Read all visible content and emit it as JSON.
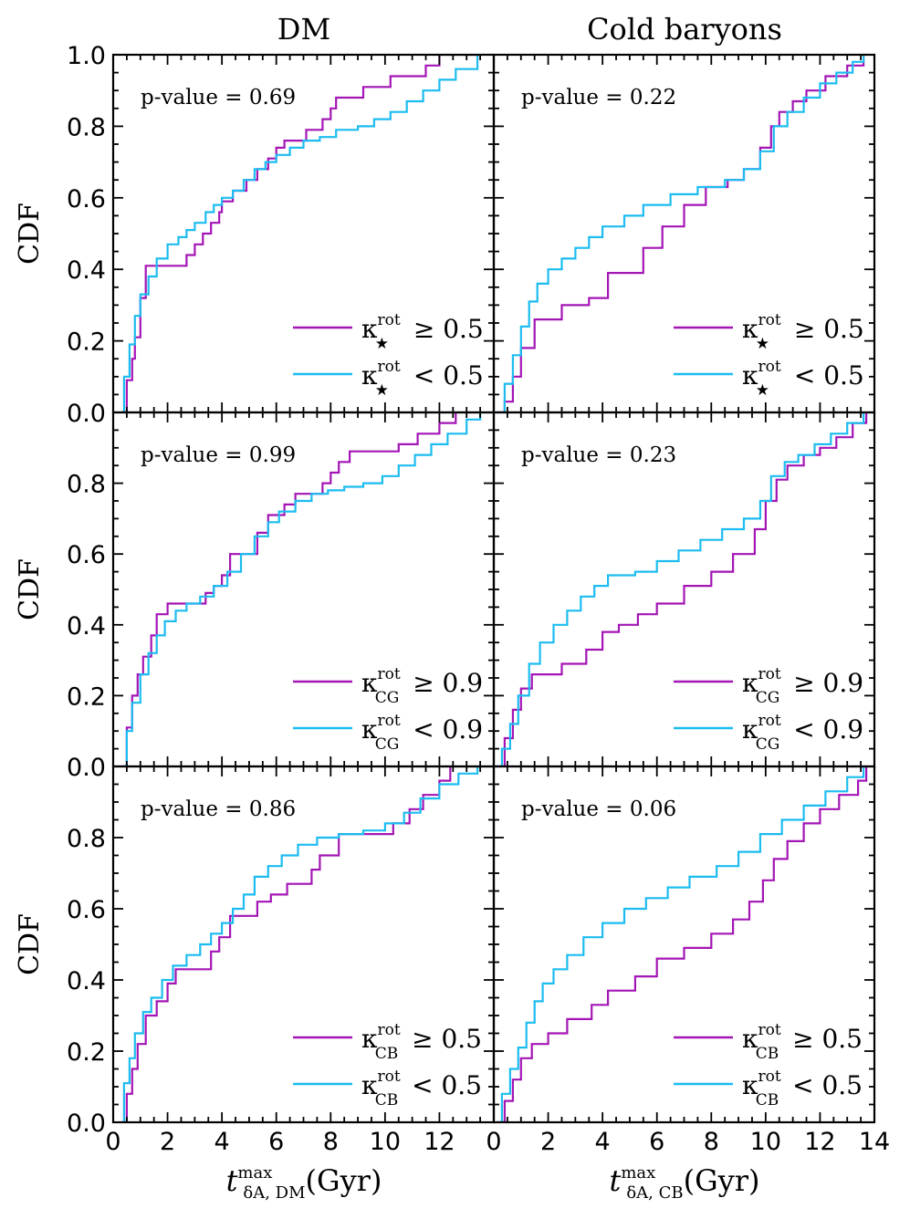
{
  "colors": {
    "magenta": "#a315b5",
    "cyan": "#1cbcf0"
  },
  "column_titles": [
    "DM",
    "Cold baryons"
  ],
  "axis": {
    "ylabel": "CDF",
    "xlabel_left": {
      "main": "t",
      "sup": "max",
      "sub": "δA, DM",
      "units": "(Gyr)"
    },
    "xlabel_right": {
      "main": "t",
      "sup": "max",
      "sub": "δA, CB",
      "units": "(Gyr)"
    },
    "xticks_left": [
      "0",
      "2",
      "4",
      "6",
      "8",
      "10",
      "12"
    ],
    "xticks_right": [
      "0",
      "2",
      "4",
      "6",
      "8",
      "10",
      "12",
      "14"
    ],
    "yticks_top": [
      "0.0",
      "0.2",
      "0.4",
      "0.6",
      "0.8",
      "1.0"
    ],
    "yticks_rest": [
      "0.0",
      "0.2",
      "0.4",
      "0.6",
      "0.8"
    ]
  },
  "panels_text": [
    {
      "pvalue": "p-value = 0.69",
      "leg_main": "κ",
      "leg_sup": "rot",
      "leg_sub": "★",
      "leg_hi": "≥ 0.5",
      "leg_lo": "< 0.5"
    },
    {
      "pvalue": "p-value = 0.22",
      "leg_main": "κ",
      "leg_sup": "rot",
      "leg_sub": "★",
      "leg_hi": "≥ 0.5",
      "leg_lo": "< 0.5"
    },
    {
      "pvalue": "p-value = 0.99",
      "leg_main": "κ",
      "leg_sup": "rot",
      "leg_sub": "CG",
      "leg_hi": "≥ 0.9",
      "leg_lo": "< 0.9"
    },
    {
      "pvalue": "p-value = 0.23",
      "leg_main": "κ",
      "leg_sup": "rot",
      "leg_sub": "CG",
      "leg_hi": "≥ 0.9",
      "leg_lo": "< 0.9"
    },
    {
      "pvalue": "p-value = 0.86",
      "leg_main": "κ",
      "leg_sup": "rot",
      "leg_sub": "CB",
      "leg_hi": "≥ 0.5",
      "leg_lo": "< 0.5"
    },
    {
      "pvalue": "p-value = 0.06",
      "leg_main": "κ",
      "leg_sup": "rot",
      "leg_sub": "CB",
      "leg_hi": "≥ 0.5",
      "leg_lo": "< 0.5"
    }
  ],
  "chart_data": {
    "type": "line",
    "subtype": "step-CDF",
    "xlim": [
      0,
      14
    ],
    "ylim": [
      0,
      1
    ],
    "panels": [
      {
        "column": "DM",
        "row": 1,
        "series": [
          {
            "name": "κ★rot ≥ 0.5",
            "color": "magenta",
            "x": [
              0.3,
              0.5,
              0.7,
              0.8,
              1.0,
              1.2,
              2.4,
              2.7,
              3.0,
              3.3,
              3.6,
              3.9,
              4.0,
              4.4,
              4.9,
              5.3,
              5.7,
              6.0,
              6.3,
              6.9,
              7.1,
              7.7,
              8.0,
              8.2,
              8.6,
              9.2,
              10.2,
              11.5,
              12.0,
              13.5
            ],
            "y": [
              0.0,
              0.09,
              0.15,
              0.21,
              0.32,
              0.41,
              0.41,
              0.44,
              0.47,
              0.5,
              0.53,
              0.56,
              0.59,
              0.62,
              0.65,
              0.68,
              0.71,
              0.74,
              0.76,
              0.76,
              0.79,
              0.82,
              0.85,
              0.88,
              0.88,
              0.91,
              0.94,
              0.97,
              1.0,
              1.0
            ]
          },
          {
            "name": "κ★rot < 0.5",
            "color": "cyan",
            "x": [
              0.3,
              0.4,
              0.6,
              0.8,
              1.0,
              1.3,
              1.6,
              2.0,
              2.4,
              2.7,
              3.0,
              3.4,
              3.7,
              4.0,
              4.4,
              4.8,
              5.2,
              5.6,
              6.0,
              6.5,
              7.0,
              7.6,
              8.2,
              9.0,
              9.6,
              10.2,
              10.8,
              11.4,
              12.0,
              12.6,
              13.4
            ],
            "y": [
              0.0,
              0.1,
              0.19,
              0.27,
              0.33,
              0.38,
              0.43,
              0.47,
              0.49,
              0.51,
              0.53,
              0.56,
              0.58,
              0.6,
              0.62,
              0.65,
              0.68,
              0.7,
              0.72,
              0.74,
              0.76,
              0.77,
              0.79,
              0.8,
              0.82,
              0.84,
              0.87,
              0.9,
              0.93,
              0.96,
              1.0
            ]
          }
        ]
      },
      {
        "column": "Cold baryons",
        "row": 1,
        "series": [
          {
            "name": "κ★rot ≥ 0.5",
            "color": "magenta",
            "x": [
              0.1,
              0.4,
              0.7,
              1.0,
              1.5,
              2.5,
              3.5,
              4.2,
              5.5,
              6.2,
              7.0,
              7.8,
              8.6,
              9.2,
              9.8,
              10.2,
              10.5,
              11.0,
              11.5,
              12.2,
              13.0,
              13.6
            ],
            "y": [
              0.0,
              0.03,
              0.1,
              0.18,
              0.26,
              0.3,
              0.32,
              0.39,
              0.46,
              0.52,
              0.58,
              0.63,
              0.65,
              0.68,
              0.74,
              0.8,
              0.84,
              0.87,
              0.9,
              0.94,
              0.97,
              1.0
            ]
          },
          {
            "name": "κ★rot < 0.5",
            "color": "cyan",
            "x": [
              0.1,
              0.4,
              0.7,
              1.0,
              1.3,
              1.6,
              2.0,
              2.5,
              3.0,
              3.5,
              4.0,
              4.8,
              5.5,
              6.5,
              7.5,
              8.5,
              9.2,
              9.8,
              10.3,
              10.8,
              11.4,
              12.0,
              12.6,
              13.2,
              13.6
            ],
            "y": [
              0.0,
              0.08,
              0.16,
              0.24,
              0.31,
              0.36,
              0.4,
              0.43,
              0.46,
              0.49,
              0.52,
              0.55,
              0.58,
              0.61,
              0.63,
              0.65,
              0.68,
              0.73,
              0.8,
              0.84,
              0.88,
              0.92,
              0.95,
              0.98,
              1.0
            ]
          }
        ]
      },
      {
        "column": "DM",
        "row": 2,
        "series": [
          {
            "name": "κCGrot ≥ 0.9",
            "color": "magenta",
            "x": [
              0.3,
              0.5,
              0.7,
              0.9,
              1.1,
              1.4,
              1.6,
              2.0,
              3.1,
              3.4,
              3.7,
              4.0,
              4.3,
              4.9,
              5.3,
              5.7,
              6.3,
              6.7,
              7.3,
              7.7,
              8.0,
              8.3,
              8.7,
              9.6,
              10.5,
              11.2,
              12.0,
              12.6
            ],
            "y": [
              0.0,
              0.11,
              0.2,
              0.26,
              0.31,
              0.37,
              0.43,
              0.46,
              0.46,
              0.49,
              0.51,
              0.54,
              0.6,
              0.6,
              0.66,
              0.71,
              0.74,
              0.77,
              0.77,
              0.8,
              0.83,
              0.86,
              0.89,
              0.89,
              0.91,
              0.94,
              0.97,
              1.0
            ]
          },
          {
            "name": "κCGrot < 0.9",
            "color": "cyan",
            "x": [
              0.3,
              0.5,
              0.7,
              1.0,
              1.3,
              1.6,
              1.9,
              2.3,
              2.7,
              3.2,
              3.7,
              4.2,
              4.7,
              5.2,
              5.7,
              6.1,
              6.7,
              7.3,
              7.9,
              8.5,
              9.2,
              9.9,
              10.5,
              11.1,
              11.7,
              12.3,
              13.0,
              13.5
            ],
            "y": [
              0.0,
              0.1,
              0.18,
              0.26,
              0.32,
              0.37,
              0.41,
              0.44,
              0.46,
              0.48,
              0.51,
              0.55,
              0.6,
              0.65,
              0.69,
              0.72,
              0.75,
              0.77,
              0.78,
              0.79,
              0.8,
              0.82,
              0.85,
              0.88,
              0.91,
              0.94,
              0.98,
              1.0
            ]
          }
        ]
      },
      {
        "column": "Cold baryons",
        "row": 2,
        "series": [
          {
            "name": "κCGrot ≥ 0.9",
            "color": "magenta",
            "x": [
              0.1,
              0.4,
              0.7,
              1.0,
              1.4,
              2.5,
              3.4,
              4.0,
              4.6,
              5.3,
              6.0,
              7.0,
              8.0,
              8.8,
              9.6,
              10.0,
              10.4,
              10.8,
              11.4,
              12.0,
              12.6,
              13.2,
              13.7
            ],
            "y": [
              0.0,
              0.08,
              0.16,
              0.22,
              0.26,
              0.29,
              0.33,
              0.38,
              0.4,
              0.43,
              0.46,
              0.51,
              0.55,
              0.6,
              0.67,
              0.75,
              0.81,
              0.85,
              0.88,
              0.9,
              0.93,
              0.97,
              1.0
            ]
          },
          {
            "name": "κCGrot < 0.9",
            "color": "cyan",
            "x": [
              0.1,
              0.3,
              0.6,
              0.9,
              1.3,
              1.7,
              2.2,
              2.7,
              3.2,
              3.7,
              4.2,
              5.2,
              6.0,
              6.8,
              7.6,
              8.4,
              9.2,
              9.8,
              10.2,
              10.7,
              11.2,
              11.8,
              12.4,
              13.0,
              13.6
            ],
            "y": [
              0.0,
              0.05,
              0.12,
              0.2,
              0.29,
              0.35,
              0.4,
              0.44,
              0.48,
              0.51,
              0.54,
              0.55,
              0.58,
              0.61,
              0.64,
              0.67,
              0.7,
              0.75,
              0.82,
              0.86,
              0.88,
              0.91,
              0.94,
              0.97,
              1.0
            ]
          }
        ]
      },
      {
        "column": "DM",
        "row": 3,
        "series": [
          {
            "name": "κCBrot ≥ 0.5",
            "color": "magenta",
            "x": [
              0.3,
              0.5,
              0.7,
              0.9,
              1.2,
              1.6,
              2.0,
              2.3,
              3.2,
              3.6,
              3.9,
              4.3,
              4.7,
              5.3,
              5.8,
              6.4,
              7.3,
              7.6,
              8.3,
              9.6,
              10.3,
              10.9,
              11.4,
              12.0,
              12.4
            ],
            "y": [
              0.0,
              0.08,
              0.15,
              0.22,
              0.3,
              0.34,
              0.39,
              0.43,
              0.43,
              0.48,
              0.52,
              0.58,
              0.58,
              0.62,
              0.64,
              0.67,
              0.71,
              0.75,
              0.81,
              0.81,
              0.84,
              0.88,
              0.92,
              0.96,
              1.0
            ]
          },
          {
            "name": "κCBrot < 0.5",
            "color": "cyan",
            "x": [
              0.3,
              0.4,
              0.6,
              0.8,
              1.1,
              1.4,
              1.8,
              2.2,
              2.7,
              3.2,
              3.6,
              4.0,
              4.4,
              4.8,
              5.2,
              5.7,
              6.2,
              6.8,
              7.5,
              8.3,
              9.2,
              10.0,
              10.7,
              11.3,
              12.0,
              12.7,
              13.4
            ],
            "y": [
              0.0,
              0.11,
              0.18,
              0.25,
              0.31,
              0.35,
              0.4,
              0.44,
              0.47,
              0.5,
              0.53,
              0.56,
              0.6,
              0.64,
              0.69,
              0.72,
              0.75,
              0.78,
              0.8,
              0.81,
              0.82,
              0.84,
              0.87,
              0.91,
              0.95,
              0.98,
              1.0
            ]
          }
        ]
      },
      {
        "column": "Cold baryons",
        "row": 3,
        "series": [
          {
            "name": "κCBrot ≥ 0.5",
            "color": "magenta",
            "x": [
              0.1,
              0.4,
              0.7,
              1.0,
              1.4,
              2.0,
              2.7,
              3.6,
              4.2,
              5.2,
              6.0,
              7.0,
              8.0,
              8.8,
              9.4,
              9.9,
              10.3,
              10.8,
              11.4,
              12.0,
              12.7,
              13.4,
              13.7
            ],
            "y": [
              0.0,
              0.06,
              0.12,
              0.18,
              0.22,
              0.25,
              0.29,
              0.33,
              0.37,
              0.41,
              0.46,
              0.49,
              0.53,
              0.57,
              0.62,
              0.68,
              0.74,
              0.79,
              0.84,
              0.88,
              0.92,
              0.96,
              1.0
            ]
          },
          {
            "name": "κCBrot < 0.5",
            "color": "cyan",
            "x": [
              0.1,
              0.3,
              0.6,
              0.9,
              1.2,
              1.5,
              1.8,
              2.2,
              2.7,
              3.3,
              4.0,
              4.8,
              5.6,
              6.4,
              7.2,
              8.2,
              9.0,
              9.8,
              10.6,
              11.4,
              12.2,
              13.0,
              13.6
            ],
            "y": [
              0.0,
              0.08,
              0.15,
              0.21,
              0.28,
              0.34,
              0.39,
              0.43,
              0.47,
              0.52,
              0.56,
              0.6,
              0.63,
              0.66,
              0.69,
              0.72,
              0.76,
              0.81,
              0.85,
              0.89,
              0.93,
              0.97,
              1.0
            ]
          }
        ]
      }
    ]
  }
}
